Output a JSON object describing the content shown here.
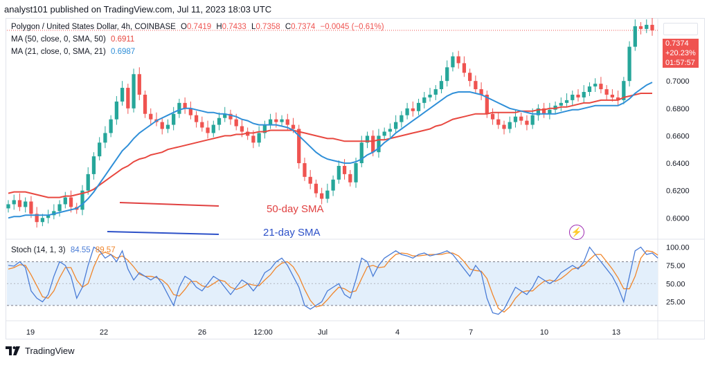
{
  "header": {
    "text": "analyst101 published on TradingView.com, Jul 11, 2023 18:03 UTC"
  },
  "legend": {
    "symbol": "Polygon / United States Dollar, 4h, COINBASE",
    "ohlc_o_label": "O",
    "ohlc_o": "0.7419",
    "ohlc_h_label": "H",
    "ohlc_h": "0.7433",
    "ohlc_l_label": "L",
    "ohlc_l": "0.7358",
    "ohlc_c_label": "C",
    "ohlc_c": "0.7374",
    "change": "−0.0045 (−0.61%)",
    "ma50_label": "MA (50, close, 0, SMA, 50)",
    "ma50_value": "0.6911",
    "ma21_label": "MA (21, close, 0, SMA, 21)",
    "ma21_value": "0.6987",
    "stoch_label": "Stoch (14, 1, 3)",
    "stoch_k": "84.55",
    "stoch_d": "89.57"
  },
  "price_tag": {
    "price": "0.7374",
    "change": "+20.23%",
    "countdown": "01:57:57"
  },
  "annotations": {
    "sma50": "50-day SMA",
    "sma21": "21-day SMA"
  },
  "footer": {
    "brand": "TradingView"
  },
  "colors": {
    "up": "#26a69a",
    "down": "#ef5350",
    "ma50": "#e8473f",
    "ma21": "#2f8fd8",
    "stoch_k": "#4a7cd6",
    "stoch_d": "#f0852a",
    "band": "#e3effb"
  },
  "chart_data": [
    {
      "type": "candlestick",
      "title": "Polygon / United States Dollar, 4h, COINBASE",
      "ylim": [
        0.585,
        0.745
      ],
      "y_ticks": [
        "0.6000",
        "0.6200",
        "0.6400",
        "0.6600",
        "0.6800",
        "0.7000"
      ],
      "x_ticks": [
        "19",
        "22",
        "26",
        "12:00",
        "Jul",
        "4",
        "7",
        "10",
        "13"
      ],
      "close": [
        0.61,
        0.613,
        0.608,
        0.612,
        0.603,
        0.597,
        0.6,
        0.602,
        0.605,
        0.61,
        0.615,
        0.608,
        0.606,
        0.62,
        0.632,
        0.645,
        0.655,
        0.662,
        0.672,
        0.685,
        0.695,
        0.68,
        0.705,
        0.69,
        0.676,
        0.672,
        0.67,
        0.665,
        0.668,
        0.676,
        0.684,
        0.68,
        0.675,
        0.67,
        0.666,
        0.662,
        0.668,
        0.673,
        0.676,
        0.672,
        0.667,
        0.663,
        0.66,
        0.655,
        0.662,
        0.668,
        0.672,
        0.67,
        0.672,
        0.668,
        0.665,
        0.64,
        0.63,
        0.625,
        0.618,
        0.614,
        0.62,
        0.628,
        0.638,
        0.632,
        0.626,
        0.64,
        0.655,
        0.66,
        0.648,
        0.66,
        0.663,
        0.665,
        0.67,
        0.675,
        0.68,
        0.678,
        0.684,
        0.688,
        0.69,
        0.694,
        0.7,
        0.71,
        0.718,
        0.713,
        0.706,
        0.7,
        0.694,
        0.69,
        0.676,
        0.672,
        0.668,
        0.665,
        0.67,
        0.674,
        0.671,
        0.668,
        0.675,
        0.68,
        0.676,
        0.679,
        0.682,
        0.684,
        0.686,
        0.69,
        0.688,
        0.692,
        0.696,
        0.698,
        0.694,
        0.69,
        0.688,
        0.686,
        0.7,
        0.725,
        0.74,
        0.738,
        0.741,
        0.737
      ],
      "series": [
        {
          "name": "MA (50, close, 0, SMA, 50)",
          "values": [
            0.618,
            0.619,
            0.619,
            0.619,
            0.618,
            0.617,
            0.616,
            0.615,
            0.615,
            0.615,
            0.616,
            0.616,
            0.617,
            0.618,
            0.619,
            0.621,
            0.624,
            0.627,
            0.63,
            0.633,
            0.636,
            0.638,
            0.641,
            0.643,
            0.644,
            0.646,
            0.647,
            0.648,
            0.65,
            0.651,
            0.652,
            0.653,
            0.654,
            0.655,
            0.656,
            0.657,
            0.658,
            0.659,
            0.66,
            0.66,
            0.661,
            0.661,
            0.662,
            0.662,
            0.663,
            0.663,
            0.664,
            0.664,
            0.664,
            0.664,
            0.664,
            0.663,
            0.662,
            0.661,
            0.66,
            0.659,
            0.658,
            0.658,
            0.657,
            0.656,
            0.656,
            0.656,
            0.656,
            0.656,
            0.656,
            0.657,
            0.657,
            0.658,
            0.659,
            0.66,
            0.661,
            0.662,
            0.663,
            0.664,
            0.665,
            0.667,
            0.668,
            0.67,
            0.672,
            0.673,
            0.674,
            0.675,
            0.676,
            0.676,
            0.676,
            0.677,
            0.677,
            0.677,
            0.677,
            0.677,
            0.678,
            0.678,
            0.678,
            0.679,
            0.679,
            0.68,
            0.68,
            0.681,
            0.681,
            0.682,
            0.683,
            0.684,
            0.684,
            0.685,
            0.686,
            0.686,
            0.686,
            0.686,
            0.688,
            0.689,
            0.69,
            0.691,
            0.691,
            0.691
          ]
        },
        {
          "name": "MA (21, close, 0, SMA, 21)",
          "values": [
            0.6,
            0.601,
            0.601,
            0.602,
            0.602,
            0.602,
            0.602,
            0.602,
            0.603,
            0.604,
            0.605,
            0.606,
            0.607,
            0.61,
            0.614,
            0.619,
            0.625,
            0.631,
            0.637,
            0.643,
            0.649,
            0.653,
            0.658,
            0.662,
            0.665,
            0.668,
            0.671,
            0.673,
            0.675,
            0.677,
            0.679,
            0.68,
            0.68,
            0.679,
            0.678,
            0.677,
            0.677,
            0.676,
            0.676,
            0.675,
            0.674,
            0.672,
            0.671,
            0.669,
            0.668,
            0.668,
            0.668,
            0.668,
            0.667,
            0.666,
            0.664,
            0.66,
            0.656,
            0.652,
            0.648,
            0.645,
            0.643,
            0.642,
            0.641,
            0.64,
            0.64,
            0.641,
            0.643,
            0.646,
            0.648,
            0.651,
            0.655,
            0.658,
            0.662,
            0.665,
            0.668,
            0.671,
            0.674,
            0.677,
            0.68,
            0.683,
            0.686,
            0.689,
            0.691,
            0.692,
            0.692,
            0.692,
            0.691,
            0.69,
            0.688,
            0.686,
            0.684,
            0.682,
            0.68,
            0.679,
            0.678,
            0.677,
            0.676,
            0.676,
            0.676,
            0.676,
            0.676,
            0.677,
            0.678,
            0.679,
            0.679,
            0.68,
            0.681,
            0.682,
            0.682,
            0.682,
            0.682,
            0.682,
            0.684,
            0.687,
            0.691,
            0.694,
            0.697,
            0.699
          ]
        }
      ]
    },
    {
      "type": "line",
      "title": "Stoch (14, 1, 3)",
      "ylim": [
        0,
        110
      ],
      "y_ticks": [
        "25.00",
        "50.00",
        "75.00",
        "100.00"
      ],
      "band": [
        20,
        80
      ],
      "series": [
        {
          "name": "%K",
          "values": [
            75,
            74,
            80,
            72,
            40,
            30,
            25,
            35,
            60,
            80,
            75,
            60,
            30,
            45,
            75,
            100,
            95,
            85,
            90,
            80,
            95,
            70,
            55,
            65,
            60,
            55,
            60,
            50,
            35,
            20,
            45,
            60,
            55,
            45,
            40,
            50,
            60,
            55,
            45,
            35,
            45,
            55,
            50,
            40,
            50,
            65,
            70,
            80,
            85,
            75,
            60,
            45,
            20,
            15,
            20,
            25,
            40,
            45,
            50,
            35,
            30,
            55,
            85,
            80,
            60,
            75,
            85,
            90,
            95,
            90,
            88,
            85,
            90,
            92,
            88,
            90,
            92,
            95,
            90,
            80,
            70,
            60,
            75,
            65,
            30,
            10,
            8,
            15,
            30,
            45,
            40,
            35,
            45,
            60,
            55,
            50,
            55,
            65,
            70,
            75,
            70,
            80,
            100,
            90,
            80,
            70,
            60,
            45,
            25,
            60,
            95,
            100,
            90,
            92,
            85
          ]
        },
        {
          "name": "%D",
          "values": [
            70,
            72,
            76,
            75,
            62,
            47,
            32,
            30,
            40,
            58,
            72,
            72,
            55,
            45,
            50,
            73,
            90,
            93,
            90,
            85,
            88,
            82,
            73,
            63,
            60,
            60,
            58,
            55,
            48,
            35,
            33,
            42,
            53,
            53,
            47,
            45,
            50,
            55,
            53,
            45,
            42,
            45,
            50,
            48,
            47,
            55,
            62,
            72,
            78,
            80,
            73,
            60,
            42,
            27,
            18,
            20,
            28,
            37,
            45,
            43,
            38,
            40,
            57,
            73,
            75,
            72,
            73,
            83,
            90,
            92,
            91,
            88,
            88,
            89,
            90,
            90,
            90,
            92,
            92,
            88,
            80,
            70,
            68,
            67,
            57,
            35,
            16,
            11,
            18,
            30,
            38,
            40,
            40,
            47,
            53,
            55,
            53,
            57,
            63,
            70,
            72,
            75,
            83,
            90,
            90,
            80,
            70,
            58,
            43,
            43,
            60,
            85,
            95,
            94,
            89
          ]
        }
      ]
    }
  ]
}
